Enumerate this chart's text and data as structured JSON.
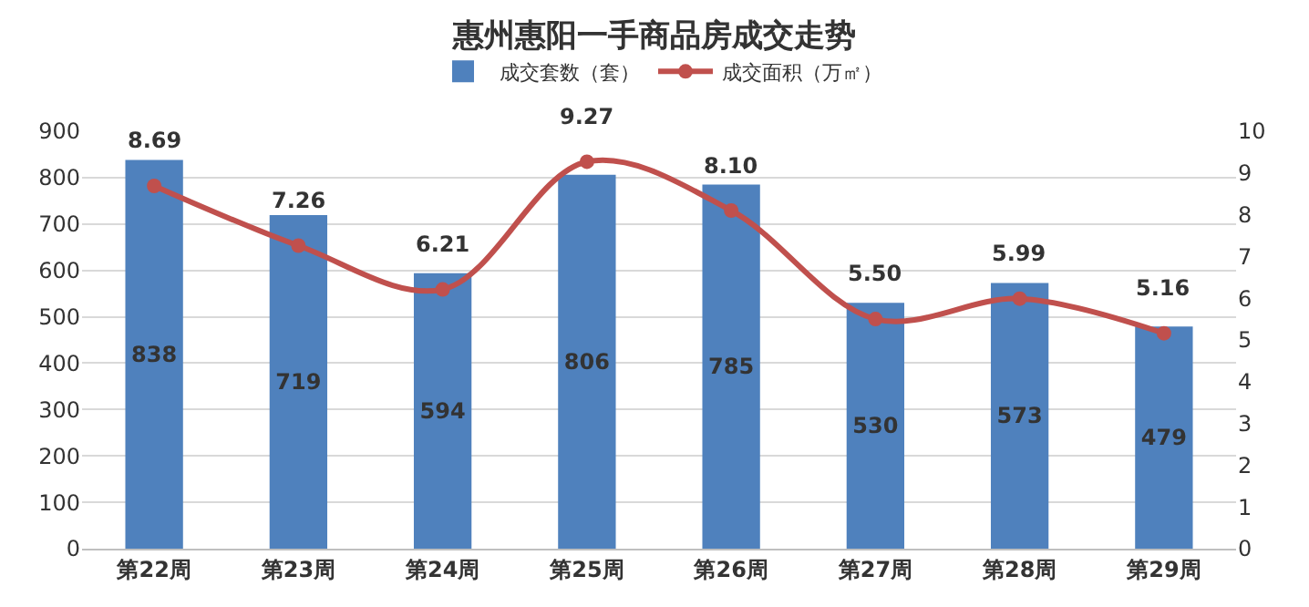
{
  "chart_data": {
    "type": "bar",
    "title": "惠州惠阳一手商品房成交走势",
    "categories": [
      "第22周",
      "第23周",
      "第24周",
      "第25周",
      "第26周",
      "第27周",
      "第28周",
      "第29周"
    ],
    "series": [
      {
        "name": "成交套数（套）",
        "color": "#4f81bd",
        "values": [
          838,
          719,
          594,
          806,
          785,
          530,
          573,
          479
        ]
      },
      {
        "name": "成交面积（万㎡）",
        "type": "line",
        "axis": "y2",
        "color": "#c0504d",
        "values": [
          8.69,
          7.26,
          6.21,
          9.27,
          8.1,
          5.5,
          5.99,
          5.16
        ],
        "value_labels": [
          "8.69",
          "7.26",
          "6.21",
          "9.27",
          "8.10",
          "5.50",
          "5.99",
          "5.16"
        ]
      }
    ],
    "ylim": [
      0,
      900
    ],
    "yticks": [
      0,
      100,
      200,
      300,
      400,
      500,
      600,
      700,
      800,
      900
    ],
    "y2lim": [
      0,
      10
    ],
    "y2ticks": [
      0,
      1,
      2,
      3,
      4,
      5,
      6,
      7,
      8,
      9,
      10
    ],
    "data_labels": true,
    "grid": "y",
    "legend": "top",
    "marker": "circle",
    "line_style": "solid"
  }
}
